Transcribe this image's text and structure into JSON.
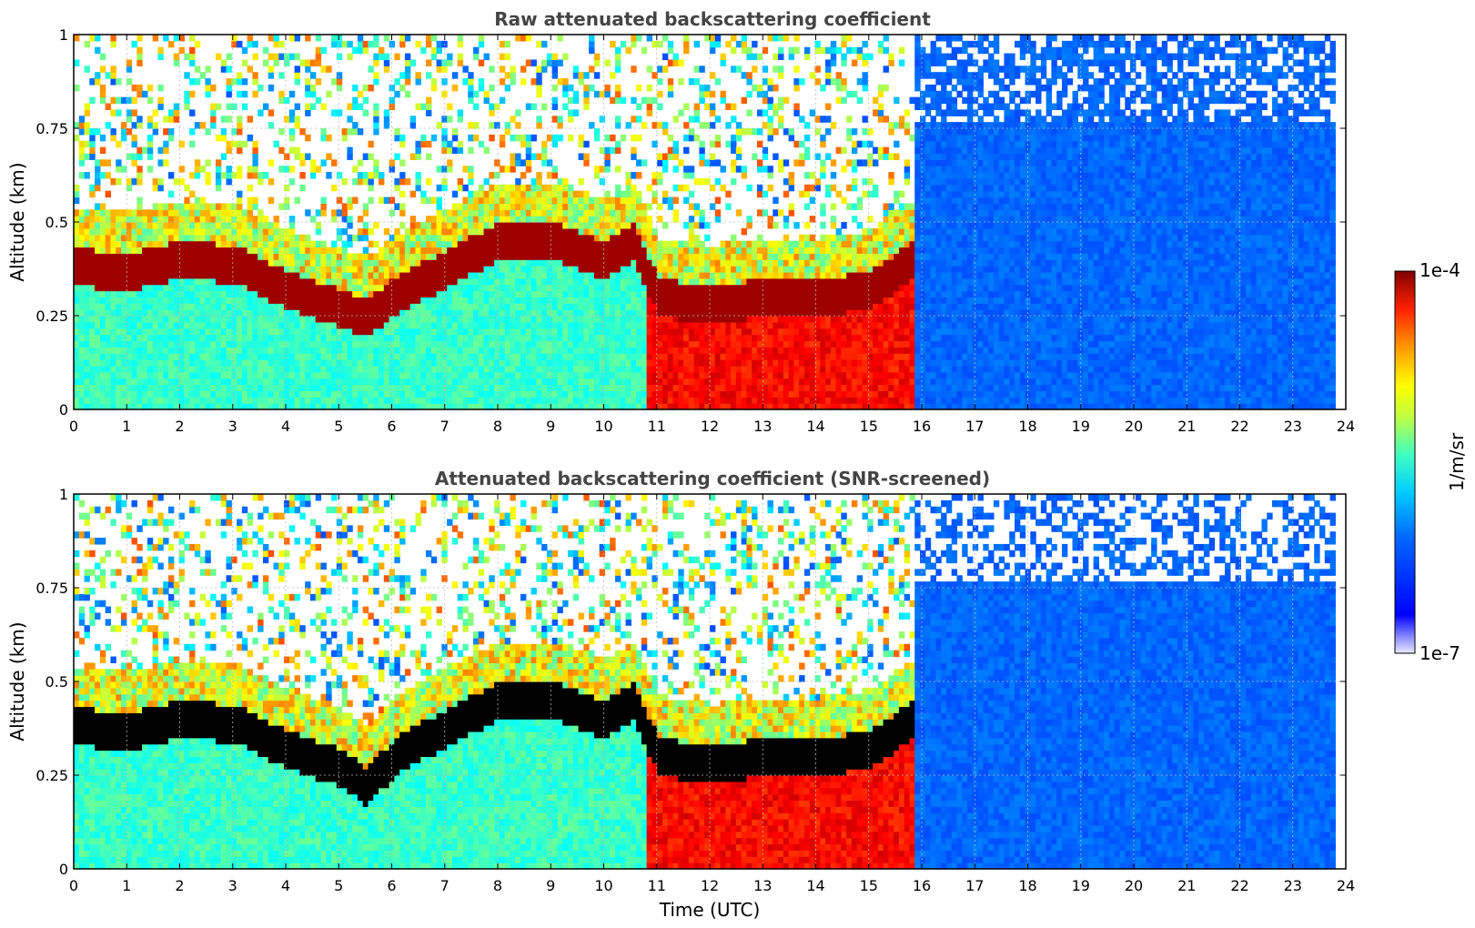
{
  "chart_data": [
    {
      "type": "heatmap",
      "title": "Raw attenuated backscattering coefficient",
      "xlabel": "",
      "ylabel": "Altitude (km)",
      "xlim": [
        0,
        24
      ],
      "ylim": [
        0,
        1
      ],
      "x_ticks": [
        "0",
        "1",
        "2",
        "3",
        "4",
        "5",
        "6",
        "7",
        "8",
        "9",
        "10",
        "11",
        "12",
        "13",
        "14",
        "15",
        "16",
        "17",
        "18",
        "19",
        "20",
        "21",
        "22",
        "23",
        "24"
      ],
      "y_ticks": [
        "0",
        "0.25",
        "0.5",
        "0.75",
        "1"
      ],
      "grid": true,
      "data_end_hour": 23.8,
      "boundary_layer_top_km": [
        [
          0,
          0.38
        ],
        [
          1,
          0.37
        ],
        [
          2,
          0.4
        ],
        [
          3,
          0.39
        ],
        [
          4,
          0.32
        ],
        [
          5,
          0.27
        ],
        [
          5.5,
          0.25
        ],
        [
          6,
          0.3
        ],
        [
          7,
          0.38
        ],
        [
          8,
          0.45
        ],
        [
          9,
          0.45
        ],
        [
          10,
          0.4
        ],
        [
          10.5,
          0.45
        ],
        [
          11,
          0.3
        ],
        [
          12,
          0.28
        ],
        [
          13,
          0.3
        ],
        [
          14,
          0.3
        ],
        [
          15,
          0.32
        ],
        [
          15.8,
          0.4
        ]
      ],
      "scheme": "jet-log",
      "snr_screened": false
    },
    {
      "type": "heatmap",
      "title": "Attenuated backscattering coefficient (SNR-screened)",
      "xlabel": "Time (UTC)",
      "ylabel": "Altitude (km)",
      "xlim": [
        0,
        24
      ],
      "ylim": [
        0,
        1
      ],
      "x_ticks": [
        "0",
        "1",
        "2",
        "3",
        "4",
        "5",
        "6",
        "7",
        "8",
        "9",
        "10",
        "11",
        "12",
        "13",
        "14",
        "15",
        "16",
        "17",
        "18",
        "19",
        "20",
        "21",
        "22",
        "23",
        "24"
      ],
      "y_ticks": [
        "0",
        "0.25",
        "0.5",
        "0.75",
        "1"
      ],
      "grid": true,
      "data_end_hour": 23.8,
      "boundary_layer_top_km": [
        [
          0,
          0.38
        ],
        [
          1,
          0.37
        ],
        [
          2,
          0.4
        ],
        [
          3,
          0.39
        ],
        [
          4,
          0.32
        ],
        [
          5,
          0.27
        ],
        [
          5.5,
          0.22
        ],
        [
          6,
          0.3
        ],
        [
          7,
          0.38
        ],
        [
          8,
          0.45
        ],
        [
          9,
          0.45
        ],
        [
          10,
          0.4
        ],
        [
          10.5,
          0.45
        ],
        [
          11,
          0.3
        ],
        [
          12,
          0.28
        ],
        [
          13,
          0.3
        ],
        [
          14,
          0.3
        ],
        [
          15,
          0.32
        ],
        [
          15.8,
          0.4
        ]
      ],
      "scheme": "jet-log",
      "snr_screened": true
    }
  ],
  "colorbar": {
    "max_label": "1e-4",
    "min_label": "1e-7",
    "unit_label": "1/m/sr",
    "max_value": 0.0001,
    "min_value": 1e-07,
    "scale": "log",
    "colormap": "jet"
  }
}
